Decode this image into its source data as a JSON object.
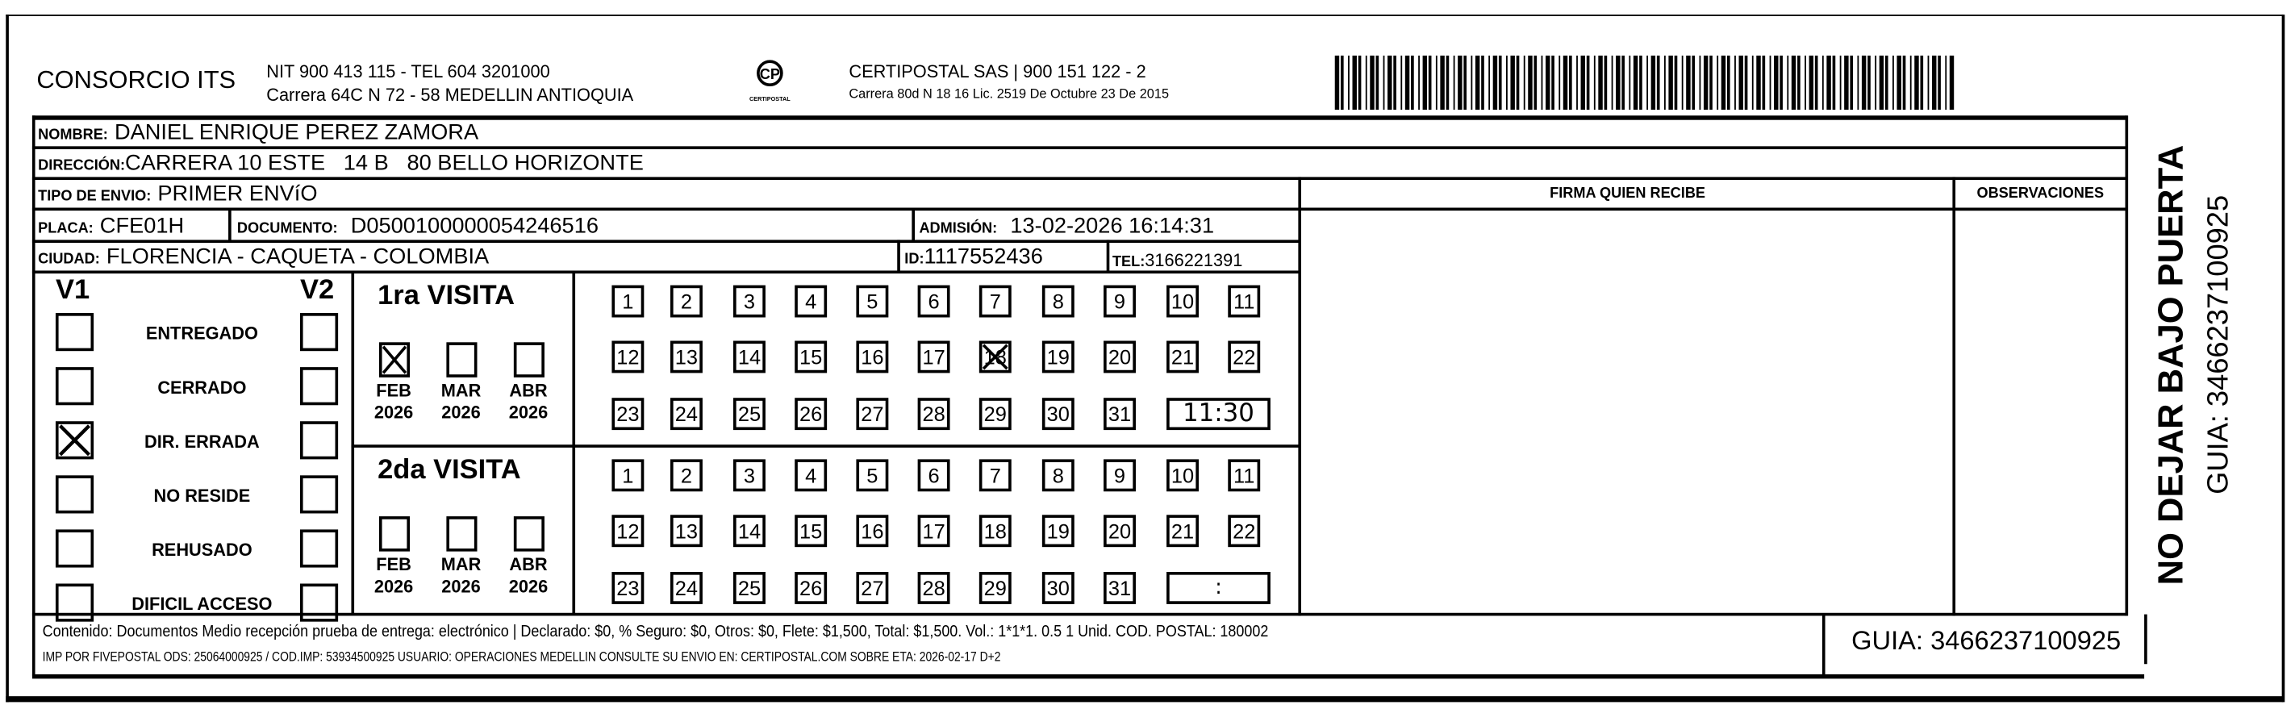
{
  "header": {
    "company": "CONSORCIO ITS",
    "company_line1": "NIT 900 413 115 - TEL 604 3201000",
    "company_line2": "Carrera 64C N 72 - 58 MEDELLIN ANTIOQUIA",
    "logo_text": "CERTIPOSTAL",
    "carrier_line1": "CERTIPOSTAL SAS | 900 151 122 - 2",
    "carrier_line2": "Carrera 80d N 18 16  Lic. 2519 De Octubre 23 De 2015"
  },
  "recipient": {
    "nombre_label": "NOMBRE:",
    "nombre": "DANIEL ENRIQUE PEREZ ZAMORA",
    "direccion_label": "DIRECCIÓN:",
    "direccion": "CARRERA 10 ESTE   14 B   80 BELLO HORIZONTE",
    "tipo_label": "TIPO DE ENVIO:",
    "tipo": "PRIMER ENVíO",
    "placa_label": "PLACA:",
    "placa": "CFE01H",
    "documento_label": "DOCUMENTO:",
    "documento": "D0500100000054246516",
    "admision_label": "ADMISIÓN:",
    "admision": "13-02-2026 16:14:31",
    "ciudad_label": "CIUDAD:",
    "ciudad": "FLORENCIA - CAQUETA - COLOMBIA",
    "id_label": "ID:",
    "id": "1117552436",
    "tel_label": "TEL:",
    "tel": "3166221391"
  },
  "signature": {
    "firma_label": "FIRMA QUIEN RECIBE",
    "observaciones_label": "OBSERVACIONES"
  },
  "status": {
    "v1_label": "V1",
    "v2_label": "V2",
    "items": [
      {
        "label": "ENTREGADO",
        "v1": false,
        "v2": false
      },
      {
        "label": "CERRADO",
        "v1": false,
        "v2": false
      },
      {
        "label": "DIR. ERRADA",
        "v1": true,
        "v2": false
      },
      {
        "label": "NO RESIDE",
        "v1": false,
        "v2": false
      },
      {
        "label": "REHUSADO",
        "v1": false,
        "v2": false
      },
      {
        "label": "DIFICIL ACCESO",
        "v1": false,
        "v2": false
      }
    ]
  },
  "visits": [
    {
      "title": "1ra VISITA",
      "months": [
        {
          "month": "FEB",
          "year": "2026",
          "checked": true
        },
        {
          "month": "MAR",
          "year": "2026",
          "checked": false
        },
        {
          "month": "ABR",
          "year": "2026",
          "checked": false
        }
      ],
      "marked_day": 18,
      "time": "11:30"
    },
    {
      "title": "2da VISITA",
      "months": [
        {
          "month": "FEB",
          "year": "2026",
          "checked": false
        },
        {
          "month": "MAR",
          "year": "2026",
          "checked": false
        },
        {
          "month": "ABR",
          "year": "2026",
          "checked": false
        }
      ],
      "marked_day": null,
      "time": ":"
    }
  ],
  "footer": {
    "content_line": "Contenido: Documentos Medio recepción prueba de entrega: electrónico | Declarado: $0, % Seguro: $0, Otros: $0, Flete: $1,500, Total: $1,500. Vol.: 1*1*1. 0.5  1 Unid. COD. POSTAL: 180002",
    "imp_line": "IMP POR FIVEPOSTAL ODS: 25064000925 / COD.IMP: 53934500925 USUARIO: OPERACIONES MEDELLIN CONSULTE SU ENVIO EN: CERTIPOSTAL.COM SOBRE ETA: 2026-02-17 D+2",
    "guia": "GUIA: 3466237100925"
  },
  "side": {
    "notice": "NO DEJAR BAJO PUERTA",
    "guia": "GUIA: 3466237100925"
  }
}
